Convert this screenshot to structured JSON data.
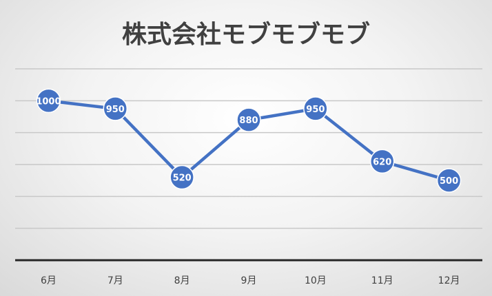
{
  "chart_data": {
    "type": "line",
    "title": "株式会社モブモブモブ",
    "categories": [
      "6月",
      "7月",
      "8月",
      "9月",
      "10月",
      "11月",
      "12月"
    ],
    "series": [
      {
        "values": [
          1000,
          950,
          520,
          880,
          950,
          620,
          500
        ]
      }
    ],
    "ylim": [
      0,
      1200
    ],
    "grid": true,
    "data_labels": true,
    "colors": {
      "line": "#4472C4",
      "marker": "#4472C4",
      "label": "#ffffff",
      "grid": "#c8c8c8",
      "axis": "#262626",
      "text": "#404040"
    }
  }
}
